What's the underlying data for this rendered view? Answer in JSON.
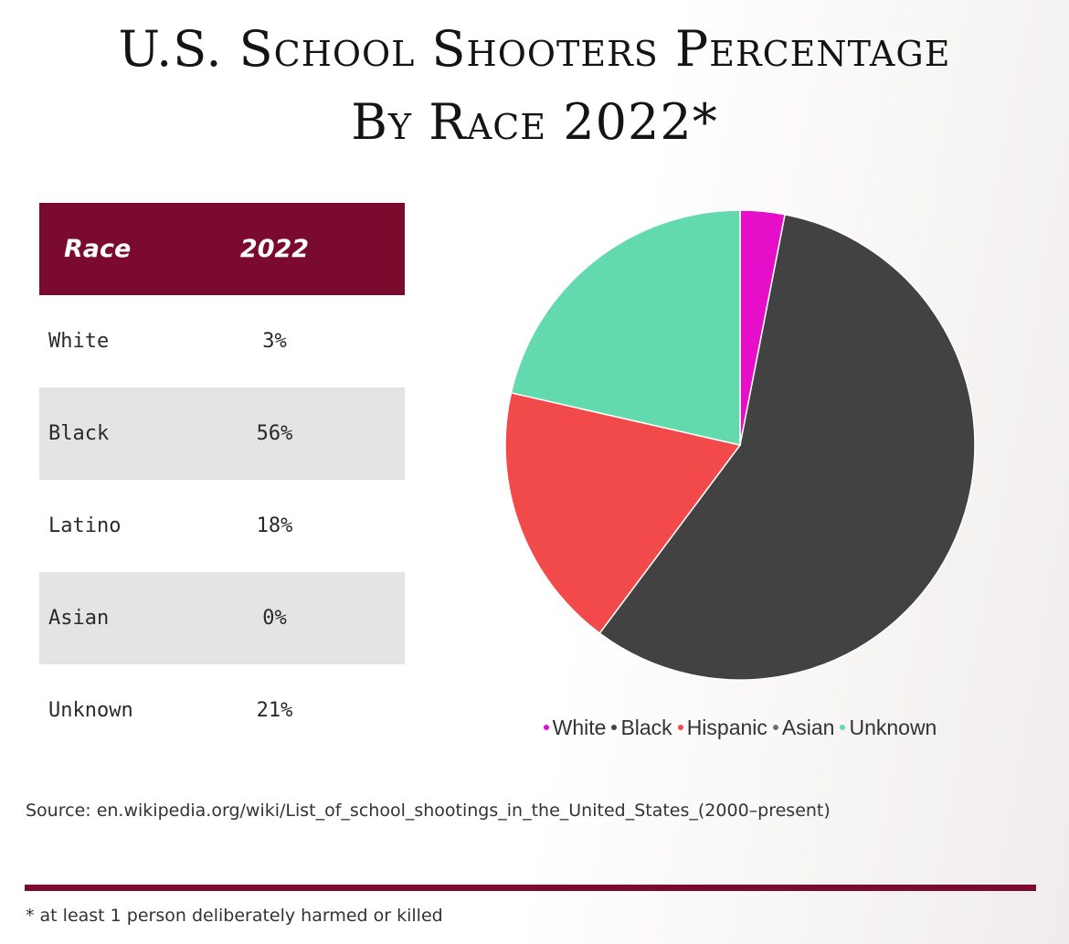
{
  "title": {
    "line1": "U.S. School Shooters Percentage",
    "line2": "By Race 2022*"
  },
  "table": {
    "headers": [
      "Race",
      "2022"
    ],
    "rows": [
      {
        "race": "White",
        "value": "3%"
      },
      {
        "race": "Black",
        "value": "56%"
      },
      {
        "race": "Latino",
        "value": "18%"
      },
      {
        "race": "Asian",
        "value": "0%"
      },
      {
        "race": "Unknown",
        "value": "21%"
      }
    ],
    "header_color": "#7b0a2f",
    "stripe_color": "#e4e4e4"
  },
  "chart_data": {
    "type": "pie",
    "title": "",
    "start_angle": "top, clockwise",
    "slices": [
      {
        "label": "White",
        "value": 3,
        "color": "#e60ec8"
      },
      {
        "label": "Black",
        "value": 56,
        "color": "#424242"
      },
      {
        "label": "Hispanic",
        "value": 18,
        "color": "#f24a4a"
      },
      {
        "label": "Asian",
        "value": 0,
        "color": "#707070"
      },
      {
        "label": "Unknown",
        "value": 21,
        "color": "#63d9ae"
      }
    ],
    "legend": {
      "placement": "bottom",
      "entries": [
        "White",
        "Black",
        "Hispanic",
        "Asian",
        "Unknown"
      ]
    }
  },
  "source": "Source: en.wikipedia.org/wiki/List_of_school_shootings_in_the_United_States_(2000–present)",
  "footnote": "* at least 1 person deliberately harmed or killed",
  "accent_color": "#7b0a2f"
}
